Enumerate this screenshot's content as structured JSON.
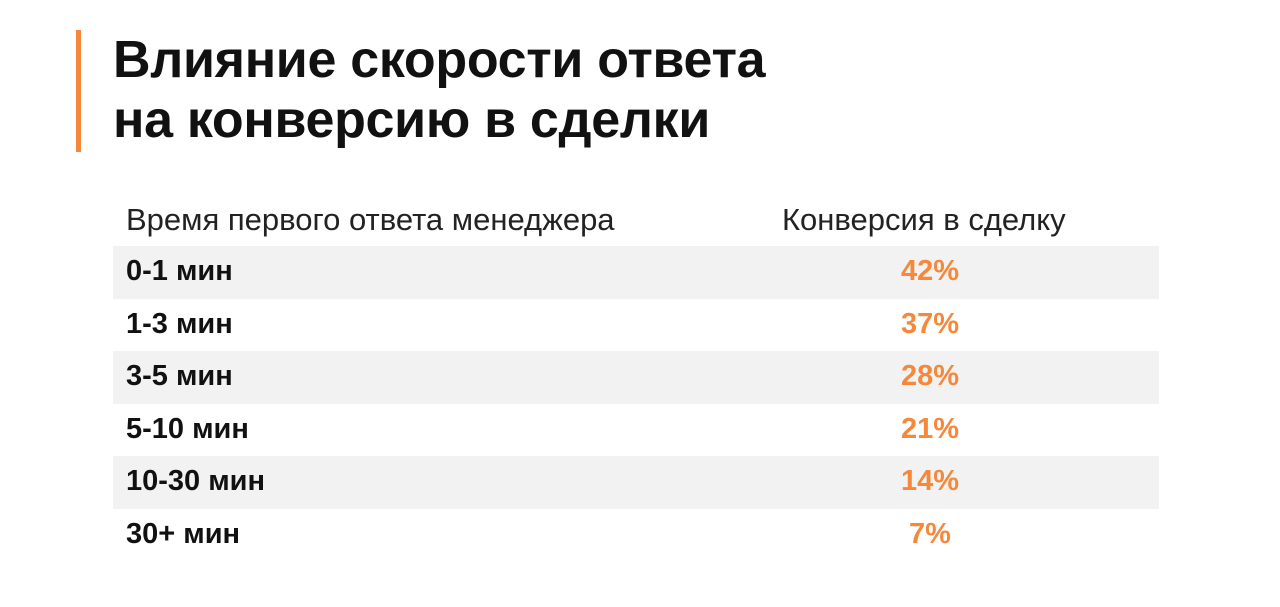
{
  "title": {
    "line1": "Влияние скорости ответа",
    "line2": "на конверсию в сделки"
  },
  "colors": {
    "accent": "#f5883a",
    "row_shade": "#f2f2f2",
    "text": "#111111"
  },
  "table": {
    "headers": {
      "time": "Время первого ответа менеджера",
      "conversion": "Конверсия в сделку"
    },
    "rows": [
      {
        "time": "0-1 мин",
        "conversion": "42%"
      },
      {
        "time": "1-3 мин",
        "conversion": "37%"
      },
      {
        "time": "3-5 мин",
        "conversion": "28%"
      },
      {
        "time": "5-10 мин",
        "conversion": "21%"
      },
      {
        "time": "10-30 мин",
        "conversion": "14%"
      },
      {
        "time": "30+ мин",
        "conversion": "7%"
      }
    ]
  }
}
